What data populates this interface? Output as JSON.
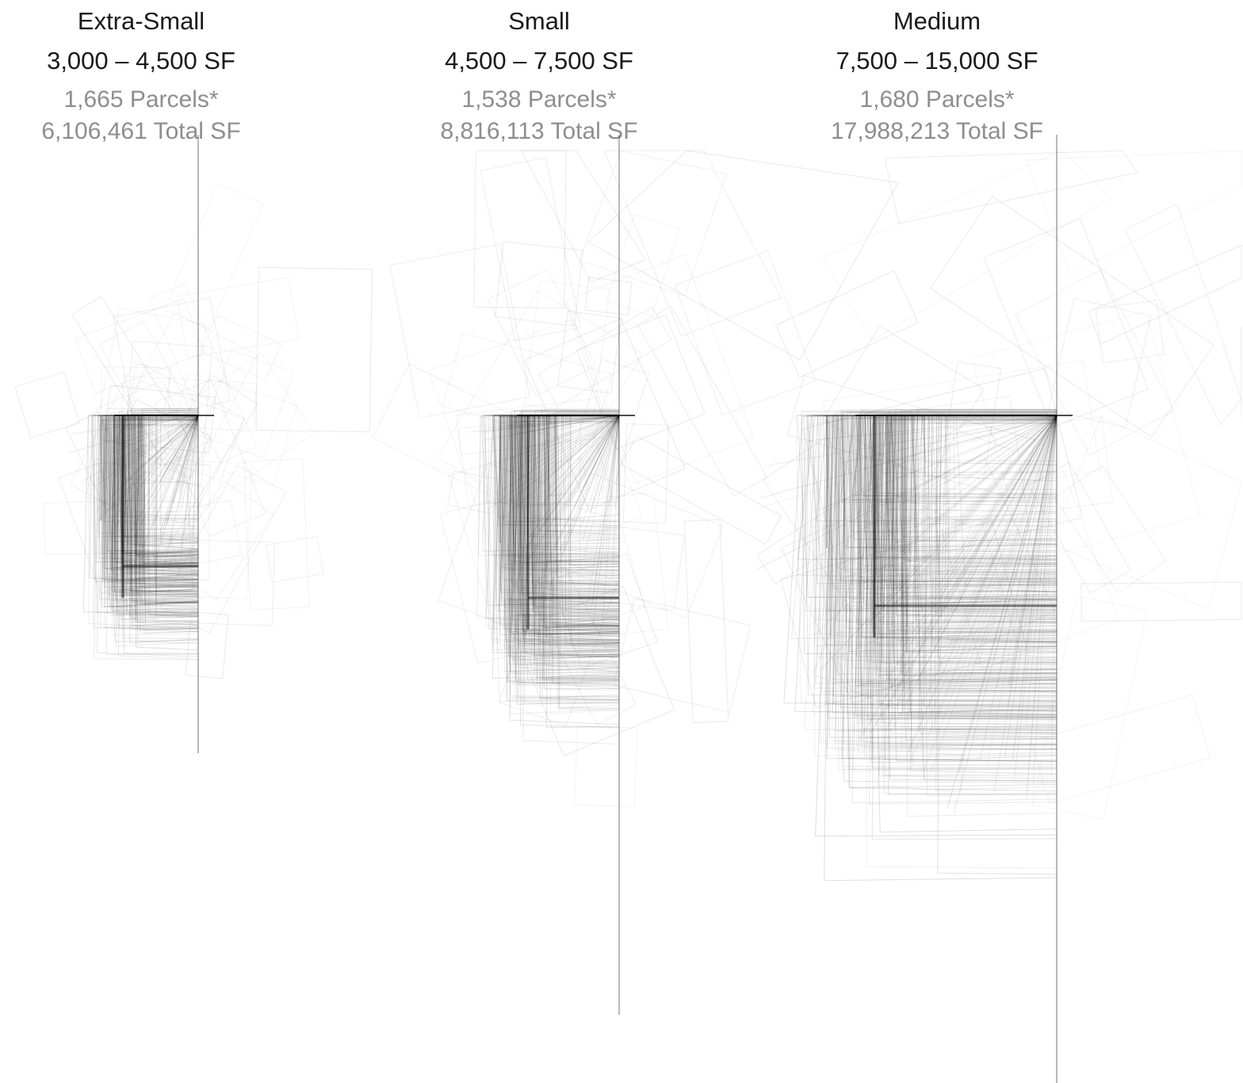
{
  "groups": [
    {
      "name": "Extra-Small",
      "range": "3,000 – 4,500 SF",
      "parcels": "1,665 Parcels*",
      "total": "6,106,461 Total SF",
      "parcel_count": 1665,
      "total_sf": 6106461
    },
    {
      "name": "Small",
      "range": "4,500 – 7,500 SF",
      "parcels": "1,538 Parcels*",
      "total": "8,816,113 Total SF",
      "parcel_count": 1538,
      "total_sf": 8816113
    },
    {
      "name": "Medium",
      "range": "7,500 – 15,000 SF",
      "parcels": "1,680 Parcels*",
      "total": "17,988,213 Total SF",
      "parcel_count": 1680,
      "total_sf": 17988213
    }
  ],
  "colors": {
    "heading": "#1a1a1a",
    "subtext": "#8e8e8e",
    "outline": "#000000",
    "background": "#ffffff"
  }
}
